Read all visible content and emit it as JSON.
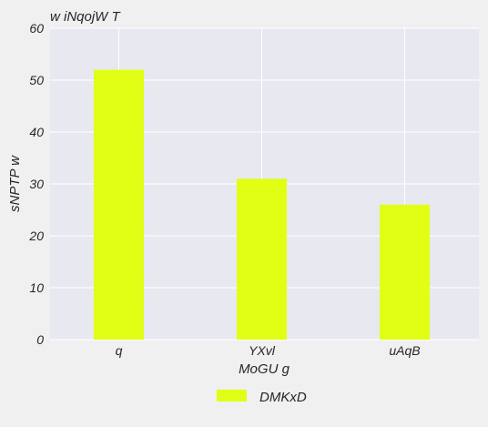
{
  "chart_data": {
    "type": "bar",
    "title": "w  iNqojW T",
    "xlabel": "MoGU g",
    "ylabel": "sNPTP w",
    "categories": [
      "q",
      "YXvl",
      "uAqB"
    ],
    "series": [
      {
        "name": "DMKxD",
        "values": [
          52,
          31,
          26
        ],
        "color": "#e0ff14"
      }
    ],
    "ylim": [
      0,
      60
    ],
    "yticks": [
      0,
      10,
      20,
      30,
      40,
      50,
      60
    ],
    "grid": true,
    "legend_position": "bottom-center",
    "plot_background": "#e8e8f0",
    "gridline_color": "#ffffff"
  }
}
